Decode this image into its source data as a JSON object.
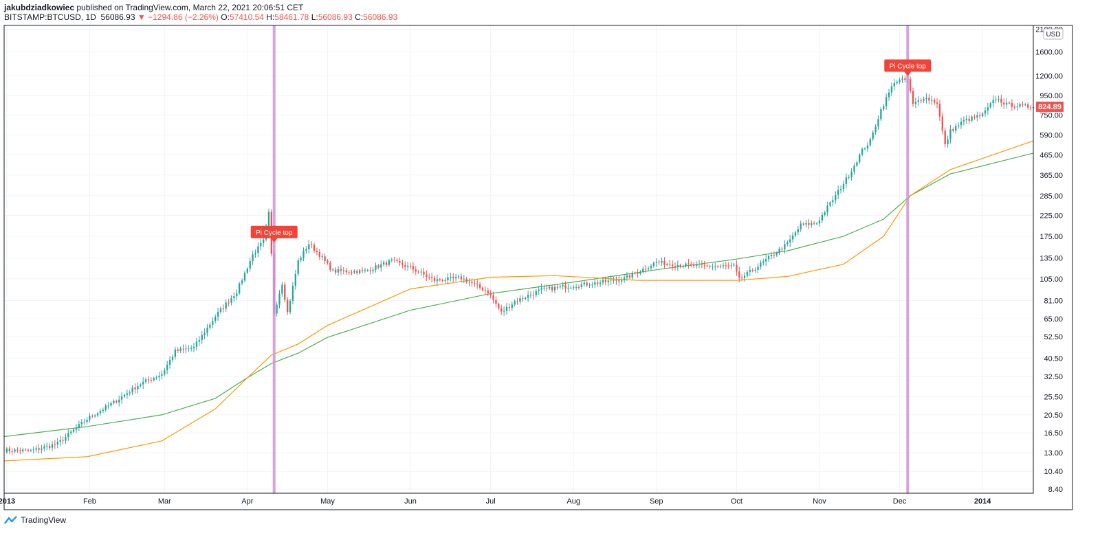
{
  "header": {
    "author": "jakubdziadkowiec",
    "published_text": "published on TradingView.com, March 22, 2021 20:06:51 CET",
    "symbol": "BITSTAMP:BTCUSD, 1D",
    "last": "56086.93",
    "change": "−1294.86 (−2.26%)",
    "o_label": "O:",
    "o_value": "57410.54",
    "h_label": "H:",
    "h_value": "58461.78",
    "l_label": "L:",
    "l_value": "56086.93",
    "c_label": "C:",
    "c_value": "56086.93"
  },
  "footer": {
    "brand": "TradingView"
  },
  "colors": {
    "up": "#26a69a",
    "down": "#ef5350",
    "ma_green": "#4caf50",
    "ma_orange": "#ff9800",
    "signal_line": "#ce93d8",
    "label_bg": "#f44336"
  },
  "chart_data": {
    "type": "candlestick",
    "title": "",
    "y_scale": "log",
    "currency_label": "USD",
    "y_ticks": [
      "2100.00",
      "1600.00",
      "1200.00",
      "950.00",
      "750.00",
      "590.00",
      "465.00",
      "365.00",
      "285.00",
      "225.00",
      "175.00",
      "135.00",
      "105.00",
      "81.00",
      "65.00",
      "52.50",
      "40.50",
      "32.50",
      "25.50",
      "20.50",
      "16.50",
      "13.00",
      "10.40",
      "8.40"
    ],
    "x_ticks": [
      "2013",
      "Feb",
      "Mar",
      "Apr",
      "May",
      "Jun",
      "Jul",
      "Aug",
      "Sep",
      "Oct",
      "Nov",
      "Dec",
      "2014"
    ],
    "x_tick_dates": [
      "2013-01-01",
      "2013-02-01",
      "2013-03-01",
      "2013-04-01",
      "2013-05-01",
      "2013-06-01",
      "2013-07-01",
      "2013-08-01",
      "2013-09-01",
      "2013-10-01",
      "2013-11-01",
      "2013-12-01",
      "2014-01-01"
    ],
    "x_range": [
      "2012-12-31",
      "2014-01-20"
    ],
    "y_range": [
      8.0,
      2200
    ],
    "last_price_label": "824.89",
    "grid": true,
    "series": [
      {
        "kind": "candles",
        "key_points": [
          [
            "2012-12-31",
            13.4
          ],
          [
            "2013-01-10",
            13.3
          ],
          [
            "2013-01-20",
            14.5
          ],
          [
            "2013-01-31",
            19.5
          ],
          [
            "2013-02-10",
            23.8
          ],
          [
            "2013-02-20",
            29.8
          ],
          [
            "2013-02-28",
            33.5
          ],
          [
            "2013-03-05",
            44
          ],
          [
            "2013-03-12",
            46
          ],
          [
            "2013-03-20",
            67
          ],
          [
            "2013-03-28",
            90
          ],
          [
            "2013-04-03",
            140
          ],
          [
            "2013-04-07",
            165
          ],
          [
            "2013-04-09",
            230
          ],
          [
            "2013-04-10",
            140
          ],
          [
            "2013-04-11",
            70
          ],
          [
            "2013-04-14",
            100
          ],
          [
            "2013-04-16",
            70
          ],
          [
            "2013-04-20",
            130
          ],
          [
            "2013-04-24",
            160
          ],
          [
            "2013-04-28",
            140
          ],
          [
            "2013-05-03",
            115
          ],
          [
            "2013-05-15",
            115
          ],
          [
            "2013-05-25",
            130
          ],
          [
            "2013-06-01",
            120
          ],
          [
            "2013-06-10",
            103
          ],
          [
            "2013-06-20",
            106
          ],
          [
            "2013-06-30",
            90
          ],
          [
            "2013-07-05",
            70
          ],
          [
            "2013-07-10",
            80
          ],
          [
            "2013-07-20",
            92
          ],
          [
            "2013-07-30",
            96
          ],
          [
            "2013-08-10",
            100
          ],
          [
            "2013-08-20",
            105
          ],
          [
            "2013-09-01",
            128
          ],
          [
            "2013-09-10",
            124
          ],
          [
            "2013-09-20",
            122
          ],
          [
            "2013-09-30",
            122
          ],
          [
            "2013-10-02",
            104
          ],
          [
            "2013-10-10",
            125
          ],
          [
            "2013-10-20",
            160
          ],
          [
            "2013-10-25",
            200
          ],
          [
            "2013-10-31",
            205
          ],
          [
            "2013-11-07",
            285
          ],
          [
            "2013-11-12",
            365
          ],
          [
            "2013-11-17",
            490
          ],
          [
            "2013-11-20",
            550
          ],
          [
            "2013-11-24",
            800
          ],
          [
            "2013-11-29",
            1120
          ],
          [
            "2013-12-04",
            1150
          ],
          [
            "2013-12-06",
            850
          ],
          [
            "2013-12-10",
            930
          ],
          [
            "2013-12-15",
            870
          ],
          [
            "2013-12-18",
            520
          ],
          [
            "2013-12-20",
            620
          ],
          [
            "2013-12-25",
            700
          ],
          [
            "2014-01-01",
            750
          ],
          [
            "2014-01-06",
            920
          ],
          [
            "2014-01-10",
            850
          ],
          [
            "2014-01-20",
            825
          ]
        ]
      },
      {
        "kind": "moving_average",
        "color": "green",
        "points": [
          [
            "2012-12-31",
            15.8
          ],
          [
            "2013-01-31",
            17.8
          ],
          [
            "2013-02-28",
            20.5
          ],
          [
            "2013-03-20",
            25
          ],
          [
            "2013-04-01",
            32
          ],
          [
            "2013-04-10",
            38
          ],
          [
            "2013-04-20",
            43
          ],
          [
            "2013-05-01",
            52
          ],
          [
            "2013-06-01",
            72
          ],
          [
            "2013-07-01",
            88
          ],
          [
            "2013-08-01",
            101
          ],
          [
            "2013-09-01",
            117
          ],
          [
            "2013-10-01",
            133
          ],
          [
            "2013-10-20",
            147
          ],
          [
            "2013-11-10",
            175
          ],
          [
            "2013-11-25",
            215
          ],
          [
            "2013-12-05",
            285
          ],
          [
            "2013-12-20",
            370
          ],
          [
            "2014-01-20",
            475
          ]
        ]
      },
      {
        "kind": "moving_average",
        "color": "orange",
        "points": [
          [
            "2012-12-31",
            11.8
          ],
          [
            "2013-01-31",
            12.4
          ],
          [
            "2013-02-28",
            15
          ],
          [
            "2013-03-20",
            22
          ],
          [
            "2013-04-01",
            32
          ],
          [
            "2013-04-10",
            42
          ],
          [
            "2013-04-20",
            48
          ],
          [
            "2013-05-01",
            60
          ],
          [
            "2013-06-01",
            93
          ],
          [
            "2013-07-01",
            107
          ],
          [
            "2013-07-25",
            109
          ],
          [
            "2013-08-10",
            106
          ],
          [
            "2013-08-25",
            103
          ],
          [
            "2013-10-01",
            103
          ],
          [
            "2013-10-20",
            108
          ],
          [
            "2013-11-10",
            125
          ],
          [
            "2013-11-25",
            175
          ],
          [
            "2013-12-05",
            285
          ],
          [
            "2013-12-20",
            390
          ],
          [
            "2014-01-20",
            550
          ]
        ]
      }
    ],
    "annotations": [
      {
        "type": "vertical_line",
        "date": "2013-04-11",
        "label": "Pi Cycle top",
        "label_price": 160
      },
      {
        "type": "vertical_line",
        "date": "2013-12-04",
        "label": "Pi Cycle top",
        "label_price": 1180
      }
    ]
  }
}
